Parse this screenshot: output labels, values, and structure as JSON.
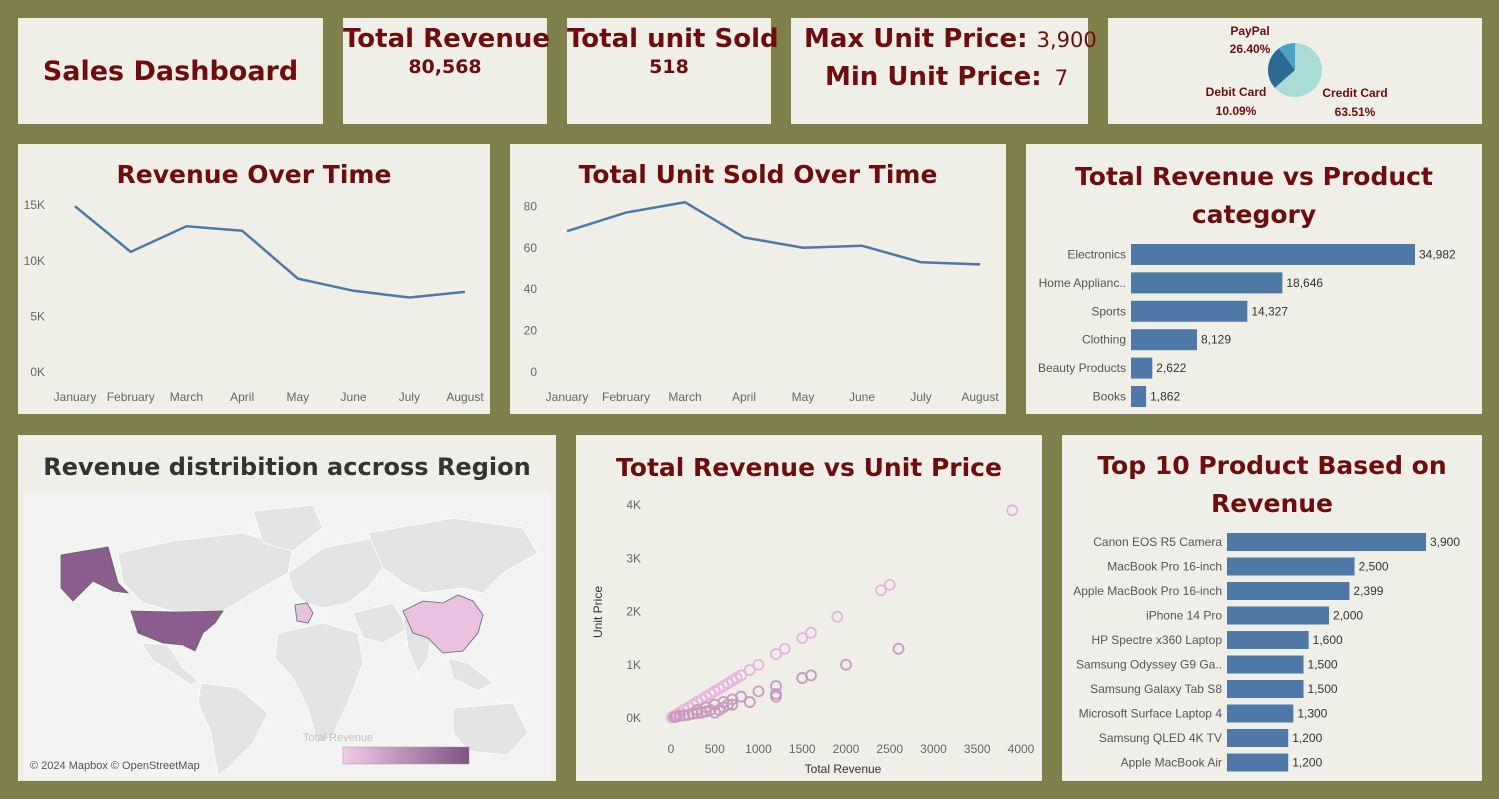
{
  "dashboard_title": "Sales Dashboard",
  "kpis": {
    "revenue_label": "Total Revenue",
    "revenue_value": "80,568",
    "units_label": "Total unit Sold",
    "units_value": "518",
    "max_price_label": "Max Unit Price:",
    "max_price_value": "3,900",
    "min_price_label": "Min Unit Price:",
    "min_price_value": "7"
  },
  "colors": {
    "background": "#7f7f4b",
    "card": "#efefe8",
    "title": "#6e0d0d",
    "bar": "#4e79a7",
    "line": "#4e79a7",
    "scatter": "#e7b3de",
    "map_high": "#8b5d8d",
    "map_low": "#e8c2e0"
  },
  "map": {
    "title": "Revenue distribition accross Region",
    "legend_label": "Total Revenue",
    "attribution": "© 2024 Mapbox © OpenStreetMap"
  },
  "chart_data": [
    {
      "type": "pie",
      "slices": [
        {
          "name": "Credit Card",
          "value": 63.51,
          "label": "63.51%",
          "color": "#a9dcd6"
        },
        {
          "name": "PayPal",
          "value": 26.4,
          "label": "26.40%",
          "color": "#2c6a96"
        },
        {
          "name": "Debit Card",
          "value": 10.09,
          "label": "10.09%",
          "color": "#4aa3c4"
        }
      ]
    },
    {
      "type": "line",
      "title": "Revenue Over Time",
      "categories": [
        "January",
        "February",
        "March",
        "April",
        "May",
        "June",
        "July",
        "August"
      ],
      "values": [
        14900,
        10800,
        13100,
        12700,
        8400,
        7300,
        6700,
        7200
      ],
      "ylim": [
        0,
        16000
      ],
      "yticks": [
        0,
        5000,
        10000,
        15000
      ],
      "ytick_labels": [
        "0K",
        "5K",
        "10K",
        "15K"
      ]
    },
    {
      "type": "line",
      "title": "Total Unit Sold Over Time",
      "categories": [
        "January",
        "February",
        "March",
        "April",
        "May",
        "June",
        "July",
        "August"
      ],
      "values": [
        68,
        77,
        82,
        65,
        60,
        61,
        53,
        52
      ],
      "ylim": [
        0,
        85
      ],
      "yticks": [
        0,
        20,
        40,
        60,
        80
      ],
      "ytick_labels": [
        "0",
        "20",
        "40",
        "60",
        "80"
      ]
    },
    {
      "type": "bar",
      "orientation": "horizontal",
      "title": "Total Revenue vs Product category",
      "categories": [
        "Electronics",
        "Home Applianc..",
        "Sports",
        "Clothing",
        "Beauty Products",
        "Books"
      ],
      "values": [
        34982,
        18646,
        14327,
        8129,
        2622,
        1862
      ],
      "value_labels": [
        "34,982",
        "18,646",
        "14,327",
        "8,129",
        "2,622",
        "1,862"
      ]
    },
    {
      "type": "scatter",
      "title": "Total Revenue vs Unit Price",
      "xlabel": "Total Revenue",
      "ylabel": "Unit Price",
      "xlim": [
        0,
        4000
      ],
      "ylim": [
        0,
        4000
      ],
      "xticks": [
        0,
        500,
        1000,
        1500,
        2000,
        2500,
        3000,
        3500,
        4000
      ],
      "xtick_labels": [
        "0",
        "500",
        "1000",
        "1500",
        "2000",
        "2500",
        "3000",
        "3500",
        "4000"
      ],
      "yticks": [
        0,
        1000,
        2000,
        3000,
        4000
      ],
      "ytick_labels": [
        "0K",
        "1K",
        "2K",
        "3K",
        "4K"
      ],
      "points": [
        [
          3900,
          3900
        ],
        [
          2500,
          2500
        ],
        [
          2399,
          2399
        ],
        [
          1900,
          1900
        ],
        [
          1600,
          1600
        ],
        [
          1500,
          1500
        ],
        [
          1300,
          1300
        ],
        [
          1200,
          1200
        ],
        [
          1000,
          1000
        ],
        [
          900,
          900
        ],
        [
          800,
          800
        ],
        [
          750,
          750
        ],
        [
          700,
          700
        ],
        [
          650,
          650
        ],
        [
          600,
          600
        ],
        [
          550,
          550
        ],
        [
          500,
          500
        ],
        [
          450,
          450
        ],
        [
          400,
          400
        ],
        [
          350,
          350
        ],
        [
          300,
          300
        ],
        [
          250,
          250
        ],
        [
          200,
          200
        ],
        [
          150,
          150
        ],
        [
          100,
          100
        ],
        [
          70,
          70
        ],
        [
          50,
          50
        ],
        [
          30,
          30
        ],
        [
          20,
          20
        ],
        [
          10,
          10
        ],
        [
          2600,
          1300
        ],
        [
          2000,
          1000
        ],
        [
          1600,
          800
        ],
        [
          1500,
          750
        ],
        [
          1200,
          600
        ],
        [
          1200,
          400
        ],
        [
          1000,
          500
        ],
        [
          900,
          300
        ],
        [
          800,
          400
        ],
        [
          700,
          350
        ],
        [
          650,
          250
        ],
        [
          600,
          300
        ],
        [
          500,
          250
        ],
        [
          550,
          150
        ],
        [
          450,
          150
        ],
        [
          400,
          200
        ],
        [
          350,
          100
        ],
        [
          300,
          150
        ],
        [
          250,
          80
        ],
        [
          200,
          60
        ],
        [
          500,
          100
        ],
        [
          600,
          200
        ],
        [
          700,
          250
        ],
        [
          400,
          120
        ],
        [
          300,
          90
        ],
        [
          150,
          50
        ],
        [
          100,
          40
        ],
        [
          60,
          25
        ],
        [
          40,
          15
        ],
        [
          1200,
          450
        ]
      ]
    },
    {
      "type": "bar",
      "orientation": "horizontal",
      "title": "Top 10 Product Based on Revenue",
      "categories": [
        "Canon EOS R5 Camera",
        "MacBook Pro 16-inch",
        "Apple MacBook Pro 16-inch",
        "iPhone 14 Pro",
        "HP Spectre x360 Laptop",
        "Samsung Odyssey G9 Ga..",
        "Samsung Galaxy Tab S8",
        "Microsoft Surface Laptop 4",
        "Samsung QLED 4K TV",
        "Apple MacBook Air"
      ],
      "values": [
        3900,
        2500,
        2399,
        2000,
        1600,
        1500,
        1500,
        1300,
        1200,
        1200
      ],
      "value_labels": [
        "3,900",
        "2,500",
        "2,399",
        "2,000",
        "1,600",
        "1,500",
        "1,500",
        "1,300",
        "1,200",
        "1,200"
      ]
    }
  ]
}
